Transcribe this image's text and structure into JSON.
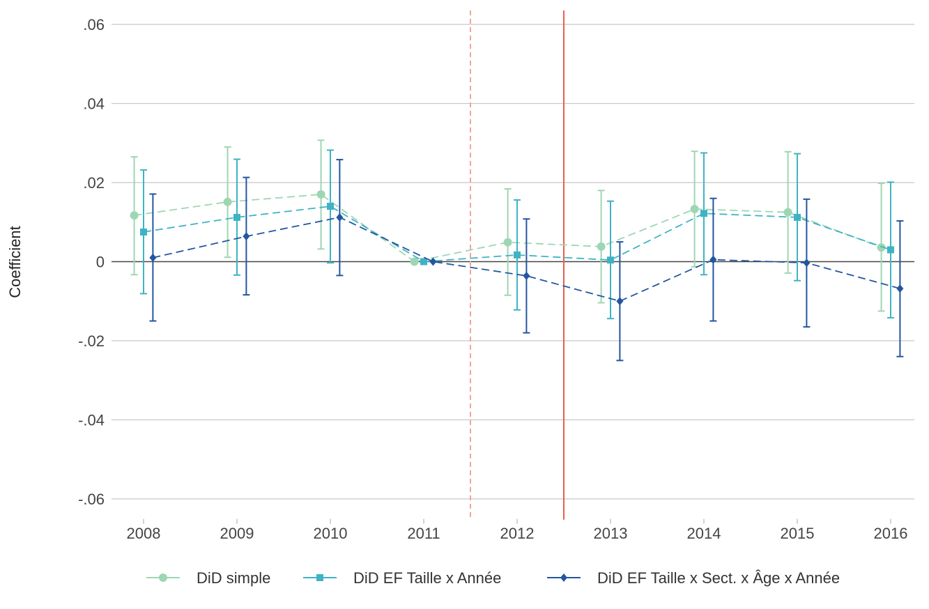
{
  "chart_data": {
    "type": "line",
    "title": "",
    "xlabel": "",
    "ylabel": "Coefficient",
    "x": [
      2008,
      2009,
      2010,
      2011,
      2012,
      2013,
      2014,
      2015,
      2016
    ],
    "ylim": [
      -0.064,
      0.064
    ],
    "yticks": [
      0.06,
      0.04,
      0.02,
      0,
      -0.02,
      -0.04,
      -0.06
    ],
    "ytick_labels": [
      ".06",
      ".04",
      ".02",
      "0",
      "-.02",
      "-.04",
      "-.06"
    ],
    "grid": "horizontal",
    "legend_position": "bottom",
    "zero_line_color": "#444444",
    "vlines": [
      {
        "x": 2011.5,
        "style": "dashed",
        "color": "#f4a39a"
      },
      {
        "x": 2012.5,
        "style": "solid",
        "color": "#e8604c"
      }
    ],
    "series": [
      {
        "name": "DiD simple",
        "marker": "circle",
        "color": "#9ed6b3",
        "offset": -0.1,
        "values": [
          0.0117,
          0.0151,
          0.017,
          0.0,
          0.0049,
          0.0038,
          0.0133,
          0.0125,
          0.0036
        ],
        "ci_low": [
          -0.0033,
          0.0011,
          0.0032,
          0.0,
          -0.0085,
          -0.0104,
          -0.0013,
          -0.0029,
          -0.0125
        ],
        "ci_high": [
          0.0265,
          0.029,
          0.0307,
          0.0,
          0.0184,
          0.018,
          0.0279,
          0.0278,
          0.0198
        ]
      },
      {
        "name": "DiD EF Taille x Année",
        "marker": "square",
        "color": "#3fb3c4",
        "offset": 0.0,
        "values": [
          0.0075,
          0.0112,
          0.014,
          0.0,
          0.0017,
          0.0004,
          0.0122,
          0.0112,
          0.003
        ],
        "ci_low": [
          -0.0081,
          -0.0034,
          -0.0003,
          0.0,
          -0.0122,
          -0.0144,
          -0.0033,
          -0.0048,
          -0.0142
        ],
        "ci_high": [
          0.0232,
          0.0259,
          0.0282,
          0.0,
          0.0156,
          0.0153,
          0.0275,
          0.0273,
          0.0201
        ]
      },
      {
        "name": "DiD EF Taille x Sect. x Âge x Année",
        "marker": "diamond",
        "color": "#2356a0",
        "offset": 0.1,
        "values": [
          0.001,
          0.0064,
          0.0112,
          0.0,
          -0.0036,
          -0.01,
          0.0005,
          -0.0003,
          -0.0068
        ],
        "ci_low": [
          -0.015,
          -0.0084,
          -0.0035,
          0.0,
          -0.018,
          -0.025,
          -0.015,
          -0.0165,
          -0.024
        ],
        "ci_high": [
          0.0171,
          0.0213,
          0.0258,
          0.0,
          0.0108,
          0.005,
          0.016,
          0.0158,
          0.0103
        ]
      }
    ]
  }
}
